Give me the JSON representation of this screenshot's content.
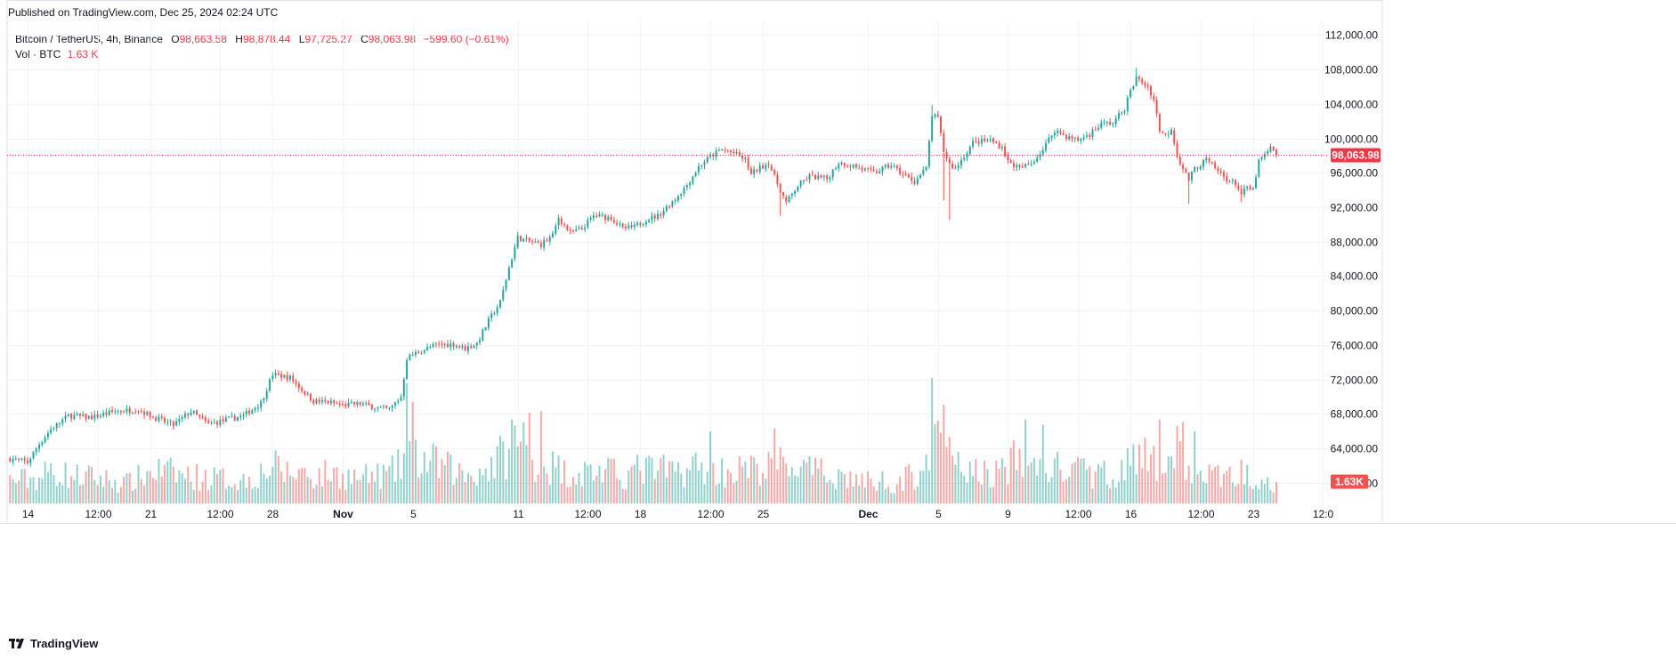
{
  "header": {
    "published": "Published on TradingView.com, Dec 25, 2024 02:24 UTC"
  },
  "legend": {
    "symbol": "Bitcoin / TetherUS, 4h, Binance",
    "open_key": "O",
    "open": "98,663.58",
    "high_key": "H",
    "high": "98,878.44",
    "low_key": "L",
    "low": "97,725.27",
    "close_key": "C",
    "close": "98,063.98",
    "change": "−599.60 (−0.61%)",
    "vol_label": "Vol · BTC",
    "vol_value": "1.63 K"
  },
  "footer": {
    "brand": "TradingView"
  },
  "colors": {
    "up": "#26a69a",
    "down": "#ef5350",
    "price_line": "#f23645",
    "grid": "#f0f3fa",
    "axis_text": "#131722"
  },
  "chart_data": {
    "type": "candlestick",
    "symbol": "Bitcoin / TetherUS",
    "interval": "4h",
    "exchange": "Binance",
    "y_ticks": [
      "112,000.00",
      "108,000.00",
      "104,000.00",
      "100,000.00",
      "96,000.00",
      "92,000.00",
      "88,000.00",
      "84,000.00",
      "80,000.00",
      "76,000.00",
      "72,000.00",
      "68,000.00",
      "64,000.00",
      "60,000.00"
    ],
    "y_tick_values": [
      112000,
      108000,
      104000,
      100000,
      96000,
      92000,
      88000,
      84000,
      80000,
      76000,
      72000,
      68000,
      64000,
      60000
    ],
    "ylim": [
      57600,
      113800
    ],
    "x_labels": [
      {
        "label": "14",
        "bold": false,
        "index": 6
      },
      {
        "label": "12:00",
        "bold": false,
        "index": 30
      },
      {
        "label": "21",
        "bold": false,
        "index": 48
      },
      {
        "label": "12:00",
        "bold": false,
        "index": 72
      },
      {
        "label": "28",
        "bold": false,
        "index": 90
      },
      {
        "label": "Nov",
        "bold": true,
        "index": 114
      },
      {
        "label": "5",
        "bold": false,
        "index": 138
      },
      {
        "label": "11",
        "bold": false,
        "index": 174
      },
      {
        "label": "12:00",
        "bold": false,
        "index": 198
      },
      {
        "label": "18",
        "bold": false,
        "index": 216
      },
      {
        "label": "12:00",
        "bold": false,
        "index": 240
      },
      {
        "label": "25",
        "bold": false,
        "index": 258
      },
      {
        "label": "Dec",
        "bold": true,
        "index": 294
      },
      {
        "label": "5",
        "bold": false,
        "index": 318
      },
      {
        "label": "9",
        "bold": false,
        "index": 342
      },
      {
        "label": "12:00",
        "bold": false,
        "index": 366
      },
      {
        "label": "16",
        "bold": false,
        "index": 384
      },
      {
        "label": "12:00",
        "bold": false,
        "index": 408
      },
      {
        "label": "23",
        "bold": false,
        "index": 426
      },
      {
        "label": "12:0",
        "bold": false,
        "index": 450
      }
    ],
    "x_range": [
      -1,
      452
    ],
    "last_price_label": "98,063.98",
    "last_price": 98063.98,
    "last_volume_label": "1.63K",
    "close_anchors": [
      [
        0,
        62800
      ],
      [
        6,
        62400
      ],
      [
        10,
        64500
      ],
      [
        14,
        66200
      ],
      [
        20,
        67800
      ],
      [
        28,
        67600
      ],
      [
        36,
        68300
      ],
      [
        44,
        68500
      ],
      [
        50,
        67500
      ],
      [
        56,
        66700
      ],
      [
        62,
        68300
      ],
      [
        68,
        66800
      ],
      [
        74,
        67300
      ],
      [
        80,
        67800
      ],
      [
        86,
        69300
      ],
      [
        90,
        72600
      ],
      [
        96,
        72200
      ],
      [
        100,
        70800
      ],
      [
        104,
        69500
      ],
      [
        110,
        69300
      ],
      [
        114,
        69000
      ],
      [
        120,
        69200
      ],
      [
        126,
        68700
      ],
      [
        130,
        68500
      ],
      [
        134,
        70000
      ],
      [
        136,
        74500
      ],
      [
        140,
        75200
      ],
      [
        146,
        76000
      ],
      [
        152,
        76100
      ],
      [
        156,
        75600
      ],
      [
        160,
        76200
      ],
      [
        164,
        78800
      ],
      [
        168,
        81000
      ],
      [
        171,
        85000
      ],
      [
        174,
        88500
      ],
      [
        178,
        88000
      ],
      [
        182,
        87700
      ],
      [
        186,
        88700
      ],
      [
        188,
        90800
      ],
      [
        192,
        89000
      ],
      [
        196,
        89500
      ],
      [
        200,
        91000
      ],
      [
        206,
        90800
      ],
      [
        210,
        89500
      ],
      [
        214,
        89700
      ],
      [
        218,
        90600
      ],
      [
        222,
        91000
      ],
      [
        228,
        93000
      ],
      [
        232,
        94600
      ],
      [
        236,
        96700
      ],
      [
        240,
        97900
      ],
      [
        244,
        98700
      ],
      [
        248,
        98300
      ],
      [
        252,
        97500
      ],
      [
        254,
        95800
      ],
      [
        256,
        96400
      ],
      [
        260,
        97200
      ],
      [
        262,
        95500
      ],
      [
        264,
        94000
      ],
      [
        266,
        92500
      ],
      [
        270,
        94500
      ],
      [
        274,
        95600
      ],
      [
        280,
        95300
      ],
      [
        284,
        97200
      ],
      [
        290,
        96700
      ],
      [
        296,
        96000
      ],
      [
        302,
        96900
      ],
      [
        306,
        95800
      ],
      [
        310,
        95000
      ],
      [
        314,
        96500
      ],
      [
        316,
        102700
      ],
      [
        318,
        102300
      ],
      [
        320,
        98500
      ],
      [
        322,
        97000
      ],
      [
        324,
        96500
      ],
      [
        330,
        99500
      ],
      [
        336,
        99800
      ],
      [
        340,
        99000
      ],
      [
        342,
        97300
      ],
      [
        346,
        96500
      ],
      [
        350,
        97100
      ],
      [
        354,
        98700
      ],
      [
        358,
        101000
      ],
      [
        362,
        100200
      ],
      [
        366,
        99800
      ],
      [
        370,
        100500
      ],
      [
        374,
        101700
      ],
      [
        378,
        101800
      ],
      [
        382,
        103500
      ],
      [
        384,
        105500
      ],
      [
        386,
        107000
      ],
      [
        388,
        106500
      ],
      [
        390,
        106000
      ],
      [
        392,
        104500
      ],
      [
        394,
        101000
      ],
      [
        396,
        100300
      ],
      [
        398,
        101200
      ],
      [
        400,
        98000
      ],
      [
        402,
        96500
      ],
      [
        404,
        95200
      ],
      [
        406,
        96500
      ],
      [
        410,
        97500
      ],
      [
        414,
        96200
      ],
      [
        418,
        95000
      ],
      [
        420,
        94800
      ],
      [
        422,
        93500
      ],
      [
        424,
        94200
      ],
      [
        426,
        94000
      ],
      [
        428,
        97300
      ],
      [
        432,
        98800
      ],
      [
        434,
        98063.98
      ]
    ],
    "volume_anchors": [
      [
        0,
        1.8
      ],
      [
        10,
        2.0
      ],
      [
        14,
        2.6
      ],
      [
        20,
        2.2
      ],
      [
        30,
        2.0
      ],
      [
        40,
        1.6
      ],
      [
        50,
        2.6
      ],
      [
        60,
        2.2
      ],
      [
        70,
        2.0
      ],
      [
        80,
        1.8
      ],
      [
        86,
        2.4
      ],
      [
        90,
        2.9
      ],
      [
        96,
        2.3
      ],
      [
        100,
        2.6
      ],
      [
        104,
        2.1
      ],
      [
        110,
        2.4
      ],
      [
        114,
        2.2
      ],
      [
        120,
        2.0
      ],
      [
        126,
        2.2
      ],
      [
        130,
        2.3
      ],
      [
        134,
        3.0
      ],
      [
        136,
        4.6
      ],
      [
        140,
        3.4
      ],
      [
        146,
        3.1
      ],
      [
        152,
        2.6
      ],
      [
        156,
        2.2
      ],
      [
        162,
        2.6
      ],
      [
        166,
        3.2
      ],
      [
        170,
        4.0
      ],
      [
        172,
        4.6
      ],
      [
        174,
        5.2
      ],
      [
        176,
        3.8
      ],
      [
        180,
        3.3
      ],
      [
        186,
        2.9
      ],
      [
        190,
        2.5
      ],
      [
        196,
        2.4
      ],
      [
        200,
        2.6
      ],
      [
        206,
        2.4
      ],
      [
        210,
        2.2
      ],
      [
        216,
        2.7
      ],
      [
        222,
        2.6
      ],
      [
        228,
        2.5
      ],
      [
        234,
        2.9
      ],
      [
        240,
        2.7
      ],
      [
        246,
        2.5
      ],
      [
        252,
        2.7
      ],
      [
        256,
        2.6
      ],
      [
        262,
        2.9
      ],
      [
        266,
        3.2
      ],
      [
        270,
        2.8
      ],
      [
        276,
        2.4
      ],
      [
        282,
        2.3
      ],
      [
        288,
        2.0
      ],
      [
        294,
        1.7
      ],
      [
        300,
        1.8
      ],
      [
        304,
        1.6
      ],
      [
        310,
        2.3
      ],
      [
        314,
        3.4
      ],
      [
        316,
        4.4
      ],
      [
        318,
        4.0
      ],
      [
        320,
        3.4
      ],
      [
        324,
        2.9
      ],
      [
        330,
        2.5
      ],
      [
        336,
        2.3
      ],
      [
        340,
        2.6
      ],
      [
        344,
        3.3
      ],
      [
        348,
        3.4
      ],
      [
        352,
        2.7
      ],
      [
        356,
        2.9
      ],
      [
        360,
        2.7
      ],
      [
        366,
        2.5
      ],
      [
        372,
        2.3
      ],
      [
        378,
        2.4
      ],
      [
        384,
        3.2
      ],
      [
        388,
        3.6
      ],
      [
        392,
        3.0
      ],
      [
        396,
        3.8
      ],
      [
        400,
        3.8
      ],
      [
        402,
        3.2
      ],
      [
        406,
        2.6
      ],
      [
        410,
        2.3
      ],
      [
        414,
        2.1
      ],
      [
        418,
        2.2
      ],
      [
        422,
        2.4
      ],
      [
        426,
        2.2
      ],
      [
        430,
        2.4
      ],
      [
        434,
        1.63
      ]
    ],
    "volume_spikes": [
      [
        136,
        9.0
      ],
      [
        138,
        7.6
      ],
      [
        172,
        6.3
      ],
      [
        176,
        6.1
      ],
      [
        178,
        6.8
      ],
      [
        182,
        6.9
      ],
      [
        240,
        5.4
      ],
      [
        262,
        5.6
      ],
      [
        316,
        9.4
      ],
      [
        318,
        6.2
      ],
      [
        320,
        7.4
      ],
      [
        322,
        5.0
      ],
      [
        348,
        6.3
      ],
      [
        354,
        5.9
      ],
      [
        394,
        6.3
      ],
      [
        400,
        5.8
      ],
      [
        402,
        6.1
      ],
      [
        406,
        5.4
      ]
    ],
    "wick_events": [
      [
        322,
        90500
      ],
      [
        320,
        92800
      ],
      [
        404,
        92400
      ],
      [
        422,
        92600
      ],
      [
        386,
        108200
      ],
      [
        316,
        103900
      ],
      [
        264,
        91000
      ]
    ]
  }
}
